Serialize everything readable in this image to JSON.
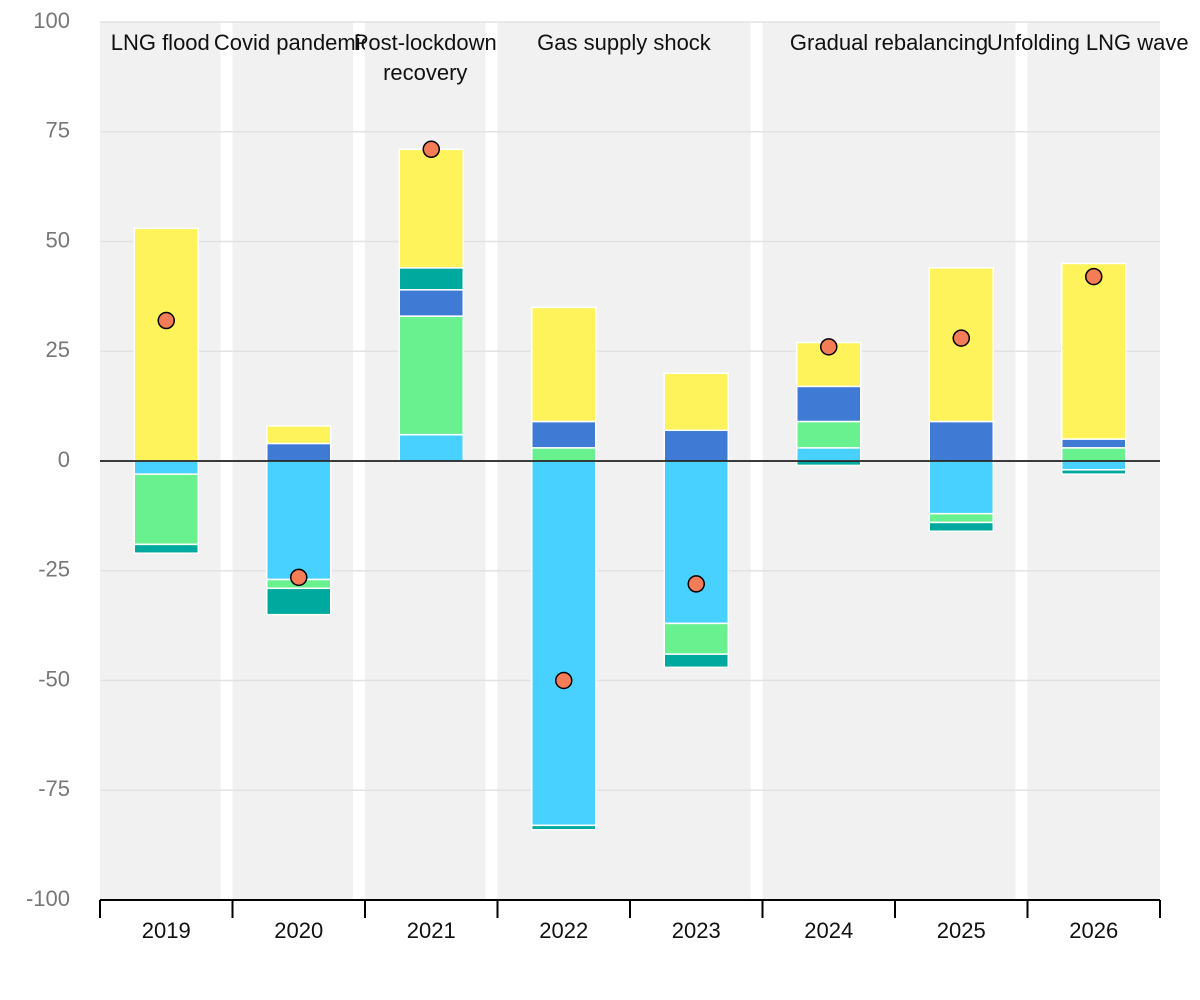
{
  "chart_data": {
    "type": "bar",
    "categories": [
      "2019",
      "2020",
      "2021",
      "2022",
      "2023",
      "2024",
      "2025",
      "2026"
    ],
    "series": [
      {
        "color": "#48d1ff",
        "values": [
          -3,
          -27,
          6,
          -83,
          -37,
          3,
          -12,
          -2
        ]
      },
      {
        "color": "#69f08f",
        "values": [
          -16,
          -2,
          27,
          3,
          -7,
          6,
          -2,
          3
        ]
      },
      {
        "color": "#3f7bd4",
        "values": [
          0,
          4,
          6,
          6,
          7,
          8,
          9,
          2
        ]
      },
      {
        "color": "#00a99d",
        "values": [
          -2,
          -6,
          5,
          -1,
          -3,
          -1,
          -2,
          -1
        ]
      },
      {
        "color": "#fff35c",
        "values": [
          53,
          4,
          27,
          26,
          13,
          10,
          35,
          40
        ]
      }
    ],
    "markers": {
      "color": "#f47c56",
      "values": [
        32,
        -26.5,
        71,
        -50,
        -28,
        26,
        28,
        42
      ]
    },
    "periods": [
      {
        "label": [
          "LNG flood"
        ],
        "span": [
          0,
          0
        ]
      },
      {
        "label": [
          "Covid pandemic"
        ],
        "span": [
          1,
          1
        ]
      },
      {
        "label": [
          "Post-lockdown",
          "recovery"
        ],
        "span": [
          2,
          2
        ]
      },
      {
        "label": [
          "Gas supply shock"
        ],
        "span": [
          3,
          4
        ]
      },
      {
        "label": [
          "Gradual rebalancing"
        ],
        "span": [
          5,
          6
        ]
      },
      {
        "label": [
          "Unfolding LNG wave"
        ],
        "span": [
          7,
          7
        ]
      }
    ],
    "ylim": [
      -100,
      100
    ],
    "yticks": [
      -100,
      -75,
      -50,
      -25,
      0,
      25,
      50,
      75,
      100
    ],
    "grid": true
  }
}
